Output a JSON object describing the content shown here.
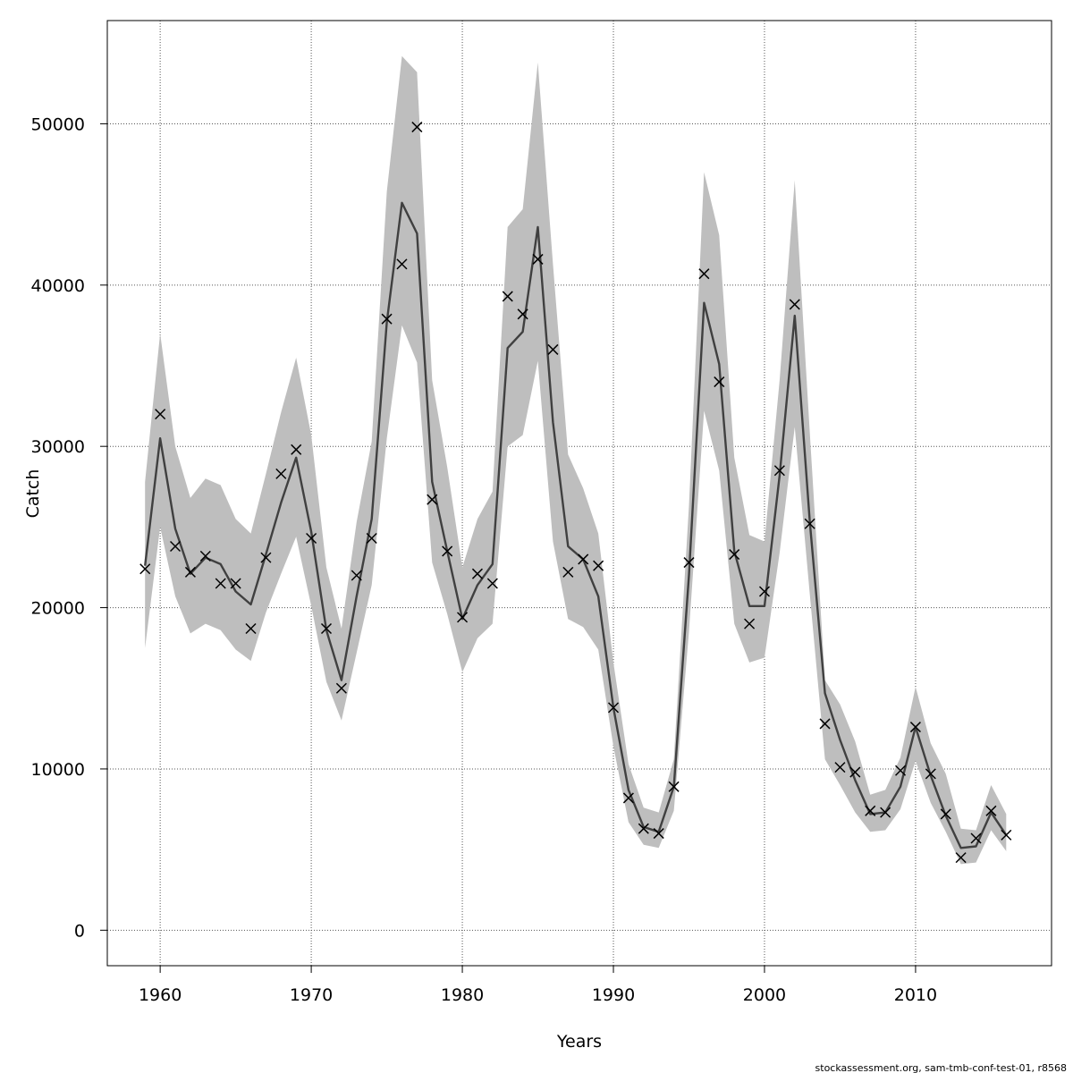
{
  "chart_data": {
    "type": "line",
    "title": "",
    "xlabel": "Years",
    "ylabel": "Catch",
    "xlim": [
      1956.5,
      2019
    ],
    "ylim": [
      -2200,
      56400
    ],
    "xticks": [
      1960,
      1970,
      1980,
      1990,
      2000,
      2010
    ],
    "yticks": [
      0,
      10000,
      20000,
      30000,
      40000,
      50000
    ],
    "xtick_labels": [
      "1960",
      "1970",
      "1980",
      "1990",
      "2000",
      "2010"
    ],
    "ytick_labels": [
      "0",
      "10000",
      "20000",
      "30000",
      "40000",
      "50000"
    ],
    "grid": true,
    "x": [
      1959,
      1960,
      1961,
      1962,
      1963,
      1964,
      1965,
      1966,
      1967,
      1968,
      1969,
      1970,
      1971,
      1972,
      1973,
      1974,
      1975,
      1976,
      1977,
      1978,
      1979,
      1980,
      1981,
      1982,
      1983,
      1984,
      1985,
      1986,
      1987,
      1988,
      1989,
      1990,
      1991,
      1992,
      1993,
      1994,
      1995,
      1996,
      1997,
      1998,
      1999,
      2000,
      2001,
      2002,
      2003,
      2004,
      2005,
      2006,
      2007,
      2008,
      2009,
      2010,
      2011,
      2012,
      2013,
      2014,
      2015,
      2016
    ],
    "series": [
      {
        "role": "fitted",
        "values": [
          22600,
          30500,
          24900,
          22100,
          23100,
          22700,
          21000,
          20200,
          23300,
          26500,
          29300,
          24700,
          18600,
          15500,
          20700,
          25500,
          37700,
          45100,
          43200,
          27800,
          23500,
          19300,
          21400,
          22700,
          36100,
          37100,
          43600,
          31500,
          23800,
          23000,
          20700,
          13800,
          8700,
          6400,
          6100,
          8900,
          22000,
          38900,
          35100,
          23500,
          20100,
          20100,
          28200,
          38100,
          25300,
          14700,
          11800,
          9300,
          7200,
          7300,
          8900,
          12600,
          9600,
          7100,
          5100,
          5200,
          7300,
          5900
        ]
      },
      {
        "role": "upper_ci",
        "values": [
          27800,
          37000,
          30000,
          26800,
          28000,
          27600,
          25500,
          24600,
          28300,
          32100,
          35500,
          30700,
          22500,
          18700,
          25300,
          30300,
          45800,
          54200,
          53200,
          34100,
          28700,
          22500,
          25500,
          27200,
          43600,
          44700,
          53800,
          41300,
          29500,
          27400,
          24600,
          16600,
          10300,
          7600,
          7300,
          10600,
          26300,
          47000,
          43100,
          29300,
          24500,
          24100,
          34100,
          46500,
          30800,
          15500,
          14000,
          11700,
          8400,
          8700,
          10700,
          15100,
          11600,
          9700,
          6300,
          6200,
          9000,
          7200
        ]
      },
      {
        "role": "lower_ci",
        "values": [
          17500,
          25000,
          20700,
          18400,
          19000,
          18600,
          17400,
          16700,
          19700,
          22100,
          24400,
          20100,
          15400,
          13000,
          17200,
          21400,
          30500,
          37500,
          35200,
          22800,
          19600,
          16000,
          18100,
          19000,
          30000,
          30700,
          35300,
          24100,
          19300,
          18800,
          17400,
          11400,
          6700,
          5300,
          5100,
          7400,
          18500,
          32200,
          28500,
          19000,
          16600,
          16900,
          23400,
          31200,
          20800,
          10600,
          9000,
          7300,
          6100,
          6200,
          7500,
          10500,
          7900,
          6100,
          4100,
          4200,
          6200,
          4900
        ]
      },
      {
        "role": "observed",
        "marker": "x",
        "values": [
          22400,
          32000,
          23800,
          22200,
          23200,
          21500,
          21500,
          18700,
          23100,
          28300,
          29800,
          24300,
          18700,
          15000,
          22000,
          24300,
          37900,
          41300,
          49800,
          26700,
          23500,
          19400,
          22100,
          21500,
          39300,
          38200,
          41600,
          36000,
          22200,
          23000,
          22600,
          13800,
          8200,
          6300,
          6000,
          8900,
          22800,
          40700,
          34000,
          23300,
          19000,
          21000,
          28500,
          38800,
          25200,
          12800,
          10100,
          9800,
          7400,
          7300,
          9900,
          12600,
          9700,
          7200,
          4500,
          5700,
          7400,
          5900
        ]
      }
    ],
    "colors": {
      "band": "#bebebe",
      "line": "#404040",
      "marker": "#000000",
      "grid": "#555555",
      "frame": "#000000"
    }
  },
  "footer": {
    "text": "stockassessment.org, sam-tmb-conf-test-01, r8568"
  }
}
